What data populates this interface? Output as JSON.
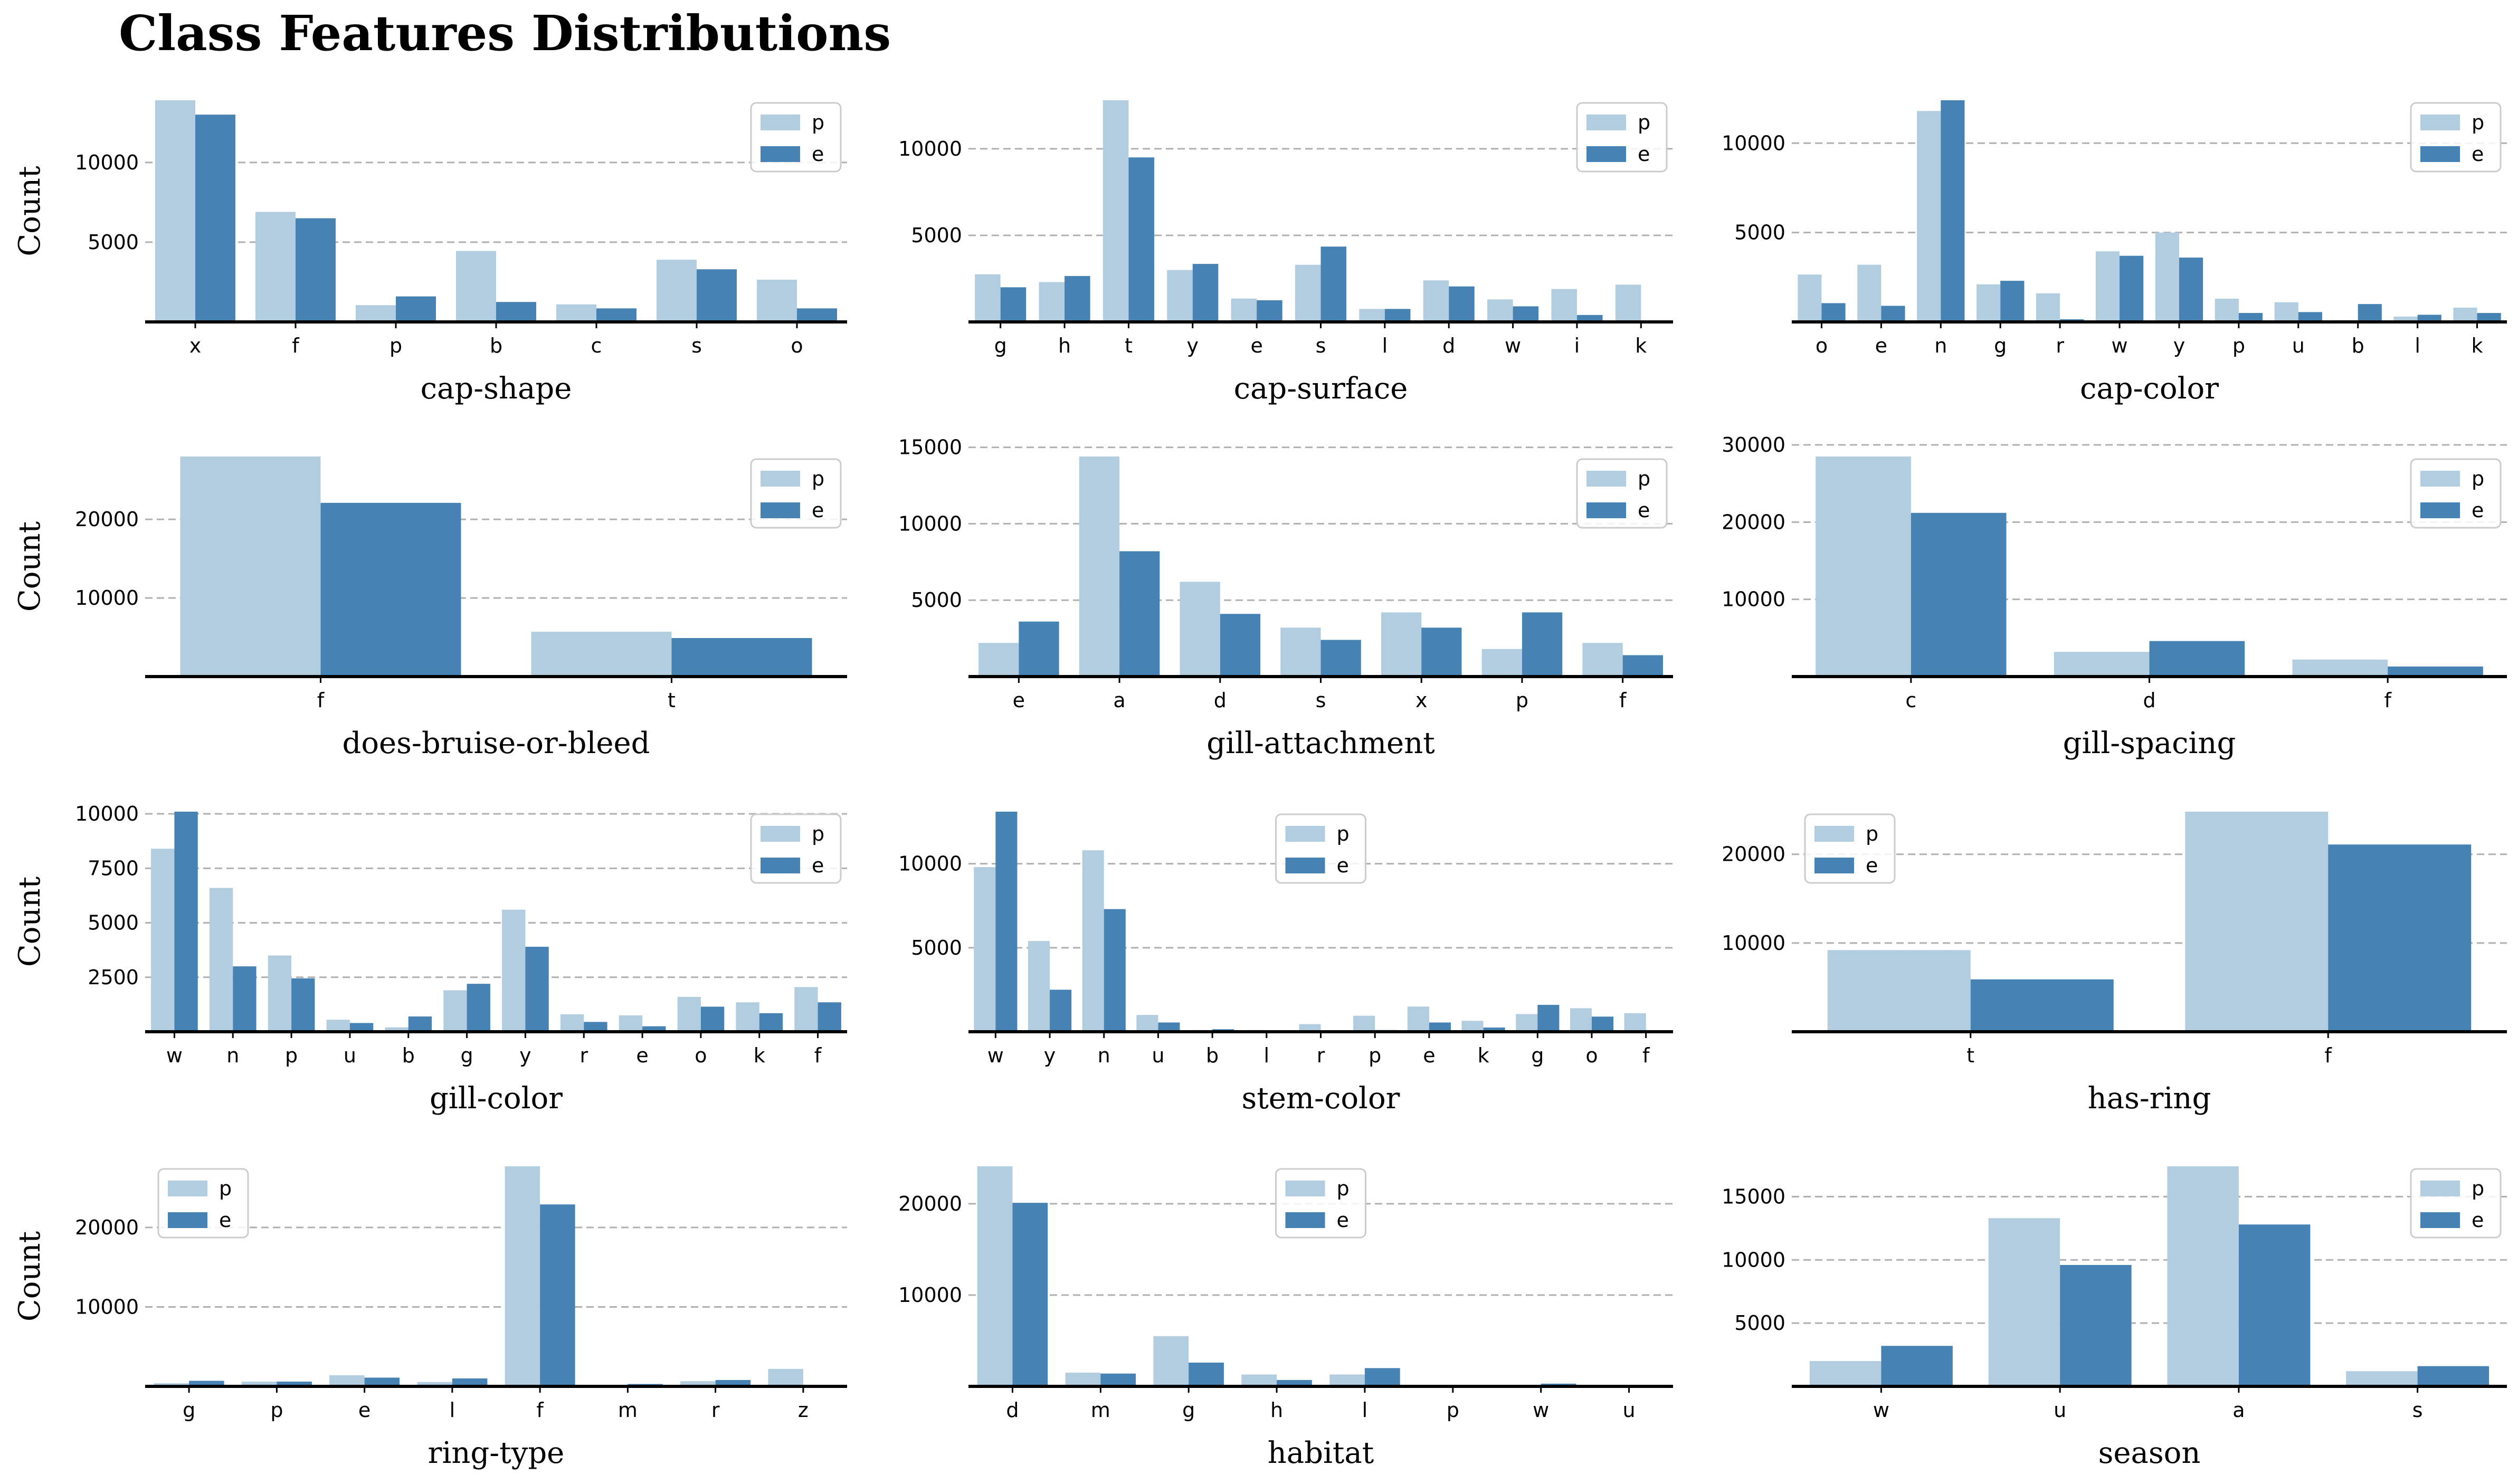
{
  "figure": {
    "title": "Class Features Distributions"
  },
  "series_colors": {
    "p": "#b3cde0",
    "e": "#4682b4"
  },
  "chart_data": [
    {
      "type": "bar",
      "xlabel": "cap-shape",
      "ylabel": "Count",
      "categories": [
        "x",
        "f",
        "p",
        "b",
        "c",
        "s",
        "o"
      ],
      "series": [
        {
          "name": "p",
          "values": [
            13900,
            6900,
            1050,
            4450,
            1100,
            3900,
            2650
          ]
        },
        {
          "name": "e",
          "values": [
            13000,
            6500,
            1600,
            1250,
            850,
            3300,
            850
          ]
        }
      ],
      "ylim": [
        0,
        13900
      ],
      "yticks": [
        5000,
        10000
      ],
      "grid": true,
      "legend": "top-right"
    },
    {
      "type": "bar",
      "xlabel": "cap-surface",
      "ylabel": "",
      "categories": [
        "g",
        "h",
        "t",
        "y",
        "e",
        "s",
        "l",
        "d",
        "w",
        "i",
        "k"
      ],
      "series": [
        {
          "name": "p",
          "values": [
            2750,
            2300,
            12800,
            3000,
            1350,
            3300,
            750,
            2400,
            1300,
            1900,
            2150
          ]
        },
        {
          "name": "e",
          "values": [
            2000,
            2650,
            9500,
            3350,
            1250,
            4350,
            750,
            2050,
            900,
            400,
            0
          ]
        }
      ],
      "ylim": [
        0,
        12800
      ],
      "yticks": [
        5000,
        10000
      ],
      "grid": true,
      "legend": "top-right"
    },
    {
      "type": "bar",
      "xlabel": "cap-color",
      "ylabel": "",
      "categories": [
        "o",
        "e",
        "n",
        "g",
        "r",
        "w",
        "y",
        "p",
        "u",
        "b",
        "l",
        "k"
      ],
      "series": [
        {
          "name": "p",
          "values": [
            2650,
            3200,
            11800,
            2100,
            1600,
            3950,
            5000,
            1300,
            1100,
            100,
            300,
            800
          ]
        },
        {
          "name": "e",
          "values": [
            1050,
            900,
            12400,
            2300,
            150,
            3700,
            3600,
            500,
            550,
            1000,
            400,
            500
          ]
        }
      ],
      "ylim": [
        0,
        12400
      ],
      "yticks": [
        5000,
        10000
      ],
      "grid": true,
      "legend": "top-right"
    },
    {
      "type": "bar",
      "xlabel": "does-bruise-or-bleed",
      "ylabel": "Count",
      "categories": [
        "f",
        "t"
      ],
      "series": [
        {
          "name": "p",
          "values": [
            28000,
            5700
          ]
        },
        {
          "name": "e",
          "values": [
            22100,
            4900
          ]
        }
      ],
      "ylim": [
        0,
        28000
      ],
      "yticks": [
        10000,
        20000
      ],
      "grid": true,
      "legend": "top-right"
    },
    {
      "type": "bar",
      "xlabel": "gill-attachment",
      "ylabel": "",
      "categories": [
        "e",
        "a",
        "d",
        "s",
        "x",
        "p",
        "f"
      ],
      "series": [
        {
          "name": "p",
          "values": [
            2200,
            14400,
            6200,
            3200,
            4200,
            1800,
            2200
          ]
        },
        {
          "name": "e",
          "values": [
            3600,
            8200,
            4100,
            2400,
            3200,
            4200,
            1400
          ]
        }
      ],
      "ylim": [
        0,
        14400
      ],
      "yticks": [
        5000,
        10000,
        15000
      ],
      "grid": true,
      "legend": "top-right"
    },
    {
      "type": "bar",
      "xlabel": "gill-spacing",
      "ylabel": "",
      "categories": [
        "c",
        "d",
        "f"
      ],
      "series": [
        {
          "name": "p",
          "values": [
            28500,
            3200,
            2200
          ]
        },
        {
          "name": "e",
          "values": [
            21200,
            4600,
            1300
          ]
        }
      ],
      "ylim": [
        0,
        28500
      ],
      "yticks": [
        10000,
        20000,
        30000
      ],
      "grid": true,
      "legend": "top-right"
    },
    {
      "type": "bar",
      "xlabel": "gill-color",
      "ylabel": "Count",
      "categories": [
        "w",
        "n",
        "p",
        "u",
        "b",
        "g",
        "y",
        "r",
        "e",
        "o",
        "k",
        "f"
      ],
      "series": [
        {
          "name": "p",
          "values": [
            8400,
            6600,
            3500,
            550,
            200,
            1900,
            5600,
            800,
            750,
            1600,
            1350,
            2050
          ]
        },
        {
          "name": "e",
          "values": [
            10100,
            3000,
            2450,
            400,
            700,
            2200,
            3900,
            450,
            250,
            1150,
            850,
            1350
          ]
        }
      ],
      "ylim": [
        0,
        10100
      ],
      "yticks": [
        2500,
        5000,
        7500,
        10000
      ],
      "grid": true,
      "legend": "top-right"
    },
    {
      "type": "bar",
      "xlabel": "stem-color",
      "ylabel": "",
      "categories": [
        "w",
        "y",
        "n",
        "u",
        "b",
        "l",
        "r",
        "p",
        "e",
        "k",
        "g",
        "o",
        "f"
      ],
      "series": [
        {
          "name": "p",
          "values": [
            9800,
            5400,
            10800,
            1000,
            100,
            100,
            450,
            950,
            1500,
            650,
            1050,
            1400,
            1100
          ]
        },
        {
          "name": "e",
          "values": [
            13100,
            2500,
            7300,
            550,
            150,
            50,
            50,
            100,
            550,
            250,
            1600,
            900,
            0
          ]
        }
      ],
      "ylim": [
        0,
        13100
      ],
      "yticks": [
        5000,
        10000
      ],
      "grid": true,
      "legend": "top-center"
    },
    {
      "type": "bar",
      "xlabel": "has-ring",
      "ylabel": "",
      "categories": [
        "t",
        "f"
      ],
      "series": [
        {
          "name": "p",
          "values": [
            9200,
            24800
          ]
        },
        {
          "name": "e",
          "values": [
            5900,
            21100
          ]
        }
      ],
      "ylim": [
        0,
        24800
      ],
      "yticks": [
        10000,
        20000
      ],
      "grid": true,
      "legend": "top-left"
    },
    {
      "type": "bar",
      "xlabel": "ring-type",
      "ylabel": "Count",
      "categories": [
        "g",
        "p",
        "e",
        "l",
        "f",
        "m",
        "r",
        "z"
      ],
      "series": [
        {
          "name": "p",
          "values": [
            400,
            600,
            1400,
            550,
            27700,
            50,
            650,
            2200
          ]
        },
        {
          "name": "e",
          "values": [
            700,
            600,
            1100,
            1000,
            22900,
            300,
            800,
            0
          ]
        }
      ],
      "ylim": [
        0,
        27700
      ],
      "yticks": [
        10000,
        20000
      ],
      "grid": true,
      "legend": "top-left"
    },
    {
      "type": "bar",
      "xlabel": "habitat",
      "ylabel": "",
      "categories": [
        "d",
        "m",
        "g",
        "h",
        "l",
        "p",
        "w",
        "u"
      ],
      "series": [
        {
          "name": "p",
          "values": [
            24100,
            1500,
            5500,
            1300,
            1300,
            100,
            100,
            50
          ]
        },
        {
          "name": "e",
          "values": [
            20100,
            1400,
            2600,
            700,
            2000,
            100,
            300,
            50
          ]
        }
      ],
      "ylim": [
        0,
        24100
      ],
      "yticks": [
        10000,
        20000
      ],
      "grid": true,
      "legend": "top-center"
    },
    {
      "type": "bar",
      "xlabel": "season",
      "ylabel": "",
      "categories": [
        "w",
        "u",
        "a",
        "s"
      ],
      "series": [
        {
          "name": "p",
          "values": [
            2000,
            13300,
            17400,
            1200
          ]
        },
        {
          "name": "e",
          "values": [
            3200,
            9600,
            12800,
            1600
          ]
        }
      ],
      "ylim": [
        0,
        17400
      ],
      "yticks": [
        5000,
        10000,
        15000
      ],
      "grid": true,
      "legend": "top-right"
    }
  ]
}
